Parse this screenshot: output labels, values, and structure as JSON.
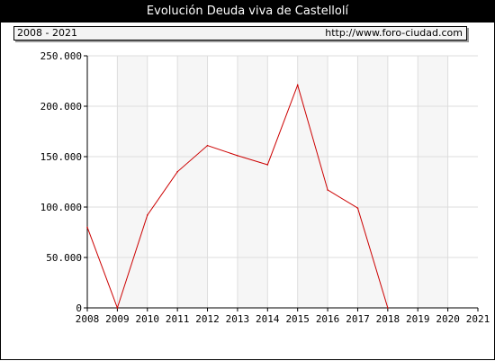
{
  "title": "Evolución Deuda viva de Castellolí",
  "range_label": "2008 - 2021",
  "url_label": "http://www.foro-ciudad.com",
  "colors": {
    "line": "#cc0000",
    "band": "#f6f6f6",
    "grid": "#dddddd"
  },
  "chart_data": {
    "type": "line",
    "title": "Evolución Deuda viva de Castellolí",
    "x": [
      "2008",
      "2009",
      "2010",
      "2011",
      "2012",
      "2013",
      "2014",
      "2015",
      "2016",
      "2017",
      "2018",
      "2019",
      "2020",
      "2021"
    ],
    "series": [
      {
        "values": [
          80000,
          0,
          92000,
          135000,
          161000,
          151000,
          142000,
          221000,
          117000,
          99000,
          0,
          null,
          null,
          null
        ]
      }
    ],
    "ylim": [
      0,
      250000
    ],
    "y_ticks": [
      0,
      50000,
      100000,
      150000,
      200000,
      250000
    ],
    "y_tick_labels": [
      "0",
      "50.000",
      "100.000",
      "150.000",
      "200.000",
      "250.000"
    ],
    "grid": true
  }
}
